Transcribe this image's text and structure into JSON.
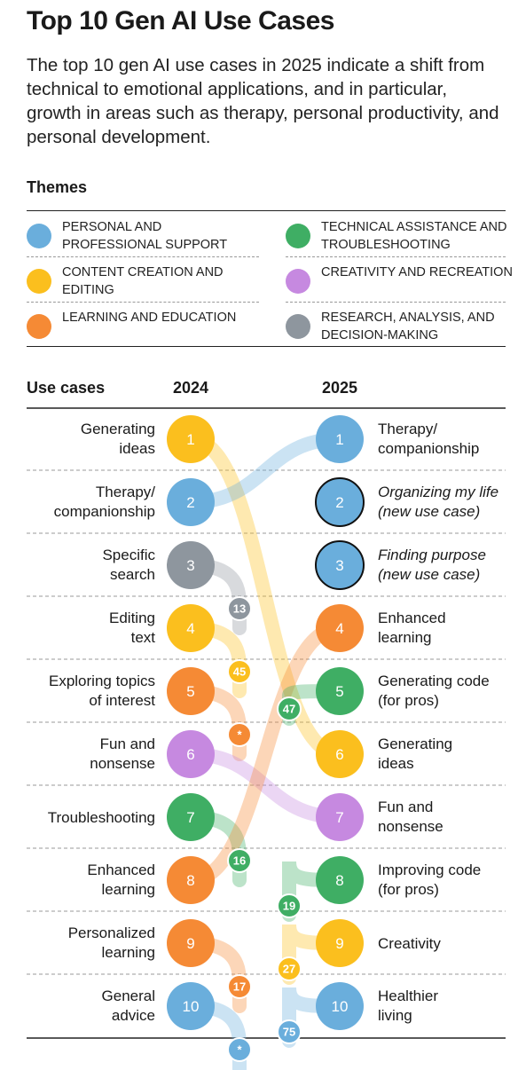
{
  "header": {
    "title": "Top 10 Gen AI Use Cases",
    "subtitle": "The top 10 gen AI use cases in 2025 indicate a shift from technical to emotional applications, and in particular, growth in areas such as therapy, personal productivity, and personal development."
  },
  "themes": {
    "heading": "Themes",
    "items": [
      {
        "id": "personal",
        "label": "Personal and professional support",
        "color": "#6aaedc"
      },
      {
        "id": "technical",
        "label": "Technical assistance and troubleshooting",
        "color": "#3fae64"
      },
      {
        "id": "content",
        "label": "Content creation and editing",
        "color": "#fbbf1e"
      },
      {
        "id": "creativity",
        "label": "Creativity and recreation",
        "color": "#c689e0"
      },
      {
        "id": "learning",
        "label": "Learning and education",
        "color": "#f58a35"
      },
      {
        "id": "research",
        "label": "Research, analysis, and decision-making",
        "color": "#8e969e"
      }
    ]
  },
  "chart_data": {
    "type": "slope",
    "column_header": "Use cases",
    "years": [
      "2024",
      "2025"
    ],
    "left": [
      {
        "rank": 1,
        "label": [
          "Generating",
          "ideas"
        ],
        "theme": "content",
        "rank_2025": "6"
      },
      {
        "rank": 2,
        "label": [
          "Therapy/",
          "companionship"
        ],
        "theme": "personal",
        "rank_2025": "1"
      },
      {
        "rank": 3,
        "label": [
          "Specific",
          "search"
        ],
        "theme": "research",
        "rank_2025": "13"
      },
      {
        "rank": 4,
        "label": [
          "Editing",
          "text"
        ],
        "theme": "content",
        "rank_2025": "45"
      },
      {
        "rank": 5,
        "label": [
          "Exploring topics",
          "of interest"
        ],
        "theme": "learning",
        "rank_2025": "*"
      },
      {
        "rank": 6,
        "label": [
          "Fun and",
          "nonsense"
        ],
        "theme": "creativity",
        "rank_2025": "7"
      },
      {
        "rank": 7,
        "label": [
          "Troubleshooting"
        ],
        "theme": "technical",
        "rank_2025": "16"
      },
      {
        "rank": 8,
        "label": [
          "Enhanced",
          "learning"
        ],
        "theme": "learning",
        "rank_2025": "4"
      },
      {
        "rank": 9,
        "label": [
          "Personalized",
          "learning"
        ],
        "theme": "learning",
        "rank_2025": "17"
      },
      {
        "rank": 10,
        "label": [
          "General",
          "advice"
        ],
        "theme": "personal",
        "rank_2025": "*"
      }
    ],
    "right": [
      {
        "rank": 1,
        "label": [
          "Therapy/",
          "companionship"
        ],
        "theme": "personal",
        "new": false,
        "rank_2024": "2"
      },
      {
        "rank": 2,
        "label": [
          "Organizing my life",
          "(new use case)"
        ],
        "theme": "personal",
        "new": true
      },
      {
        "rank": 3,
        "label": [
          "Finding purpose",
          "(new use case)"
        ],
        "theme": "personal",
        "new": true
      },
      {
        "rank": 4,
        "label": [
          "Enhanced",
          "learning"
        ],
        "theme": "learning",
        "new": false,
        "rank_2024": "8"
      },
      {
        "rank": 5,
        "label": [
          "Generating code",
          "(for pros)"
        ],
        "theme": "technical",
        "new": false,
        "rank_2024": "47"
      },
      {
        "rank": 6,
        "label": [
          "Generating",
          "ideas"
        ],
        "theme": "content",
        "new": false,
        "rank_2024": "1"
      },
      {
        "rank": 7,
        "label": [
          "Fun and",
          "nonsense"
        ],
        "theme": "creativity",
        "new": false,
        "rank_2024": "6"
      },
      {
        "rank": 8,
        "label": [
          "Improving code",
          "(for pros)"
        ],
        "theme": "technical",
        "new": false,
        "rank_2024": "19"
      },
      {
        "rank": 9,
        "label": [
          "Creativity"
        ],
        "theme": "content",
        "new": false,
        "rank_2024": "27"
      },
      {
        "rank": 10,
        "label": [
          "Healthier",
          "living"
        ],
        "theme": "personal",
        "new": false,
        "rank_2024": "75"
      }
    ]
  }
}
